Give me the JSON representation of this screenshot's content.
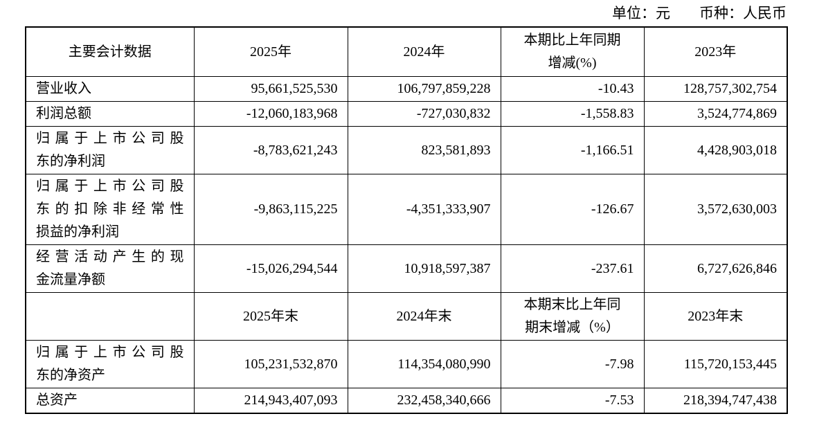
{
  "meta": {
    "unit_note": "单位：元　　币种：人民币"
  },
  "table": {
    "rows": [
      {
        "type": "header",
        "cells": [
          "主要会计数据",
          "2025年",
          "2024年",
          "本期比上年同期\n增减(%)",
          "2023年"
        ]
      },
      {
        "type": "data",
        "cells": [
          "营业收入",
          "95,661,525,530",
          "106,797,859,228",
          "-10.43",
          "128,757,302,754"
        ]
      },
      {
        "type": "data",
        "cells": [
          "利润总额",
          "-12,060,183,968",
          "-727,030,832",
          "-1,558.83",
          "3,524,774,869"
        ]
      },
      {
        "type": "data",
        "cells": [
          "归属于上市公司股\n东的净利润",
          "-8,783,621,243",
          "823,581,893",
          "-1,166.51",
          "4,428,903,018"
        ]
      },
      {
        "type": "data",
        "cells": [
          "归属于上市公司股\n东的扣除非经常性\n损益的净利润",
          "-9,863,115,225",
          "-4,351,333,907",
          "-126.67",
          "3,572,630,003"
        ]
      },
      {
        "type": "data",
        "cells": [
          "经营活动产生的现\n金流量净额",
          "-15,026,294,544",
          "10,918,597,387",
          "-237.61",
          "6,727,626,846"
        ]
      },
      {
        "type": "header",
        "cells": [
          "",
          "2025年末",
          "2024年末",
          "本期末比上年同\n期末增减（%）",
          "2023年末"
        ]
      },
      {
        "type": "data",
        "cells": [
          "归属于上市公司股\n东的净资产",
          "105,231,532,870",
          "114,354,080,990",
          "-7.98",
          "115,720,153,445"
        ]
      },
      {
        "type": "data",
        "cells": [
          "总资产",
          "214,943,407,093",
          "232,458,340,666",
          "-7.53",
          "218,394,747,438"
        ]
      }
    ]
  }
}
